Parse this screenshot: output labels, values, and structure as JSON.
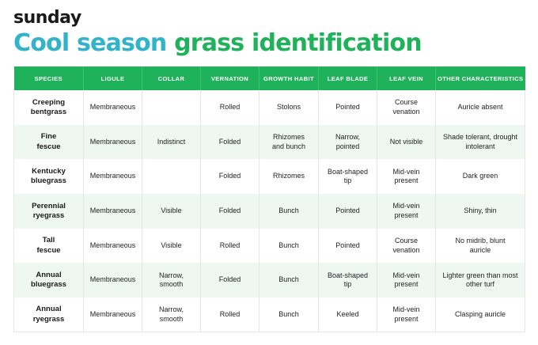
{
  "brand": {
    "logo_text": "sunday"
  },
  "title": {
    "part1": "Cool season",
    "part2": "grass identification"
  },
  "colors": {
    "header_green": "#1fb25a",
    "title_blue": "#33b3c9",
    "row_tint": "#eef8f1"
  },
  "table": {
    "headers": [
      "SPECIES",
      "LIGULE",
      "COLLAR",
      "VERNATION",
      "GROWTH HABIT",
      "LEAF BLADE",
      "LEAF VEIN",
      "OTHER CHARACTERISTICS"
    ],
    "rows": [
      [
        "Creeping bentgrass",
        "Membraneous",
        "",
        "Rolled",
        "Stolons",
        "Pointed",
        "Course venation",
        "Auricle absent"
      ],
      [
        "Fine fescue",
        "Membraneous",
        "Indistinct",
        "Folded",
        "Rhizomes and bunch",
        "Narrow, pointed",
        "Not visible",
        "Shade tolerant, drought intolerant"
      ],
      [
        "Kentucky bluegrass",
        "Membraneous",
        "",
        "Folded",
        "Rhizomes",
        "Boat-shaped tip",
        "Mid-vein present",
        "Dark green"
      ],
      [
        "Perennial ryegrass",
        "Membraneous",
        "Visible",
        "Folded",
        "Bunch",
        "Pointed",
        "Mid-vein present",
        "Shiny, thin"
      ],
      [
        "Tall fescue",
        "Membraneous",
        "Visible",
        "Rolled",
        "Bunch",
        "Pointed",
        "Course venation",
        "No midrib, blunt auricle"
      ],
      [
        "Annual bluegrass",
        "Membraneous",
        "Narrow, smooth",
        "Folded",
        "Bunch",
        "Boat-shaped tip",
        "Mid-vein present",
        "Lighter green than most other turf"
      ],
      [
        "Annual ryegrass",
        "Membraneous",
        "Narrow, smooth",
        "Rolled",
        "Bunch",
        "Keeled",
        "Mid-vein present",
        "Clasping auricle"
      ]
    ]
  }
}
